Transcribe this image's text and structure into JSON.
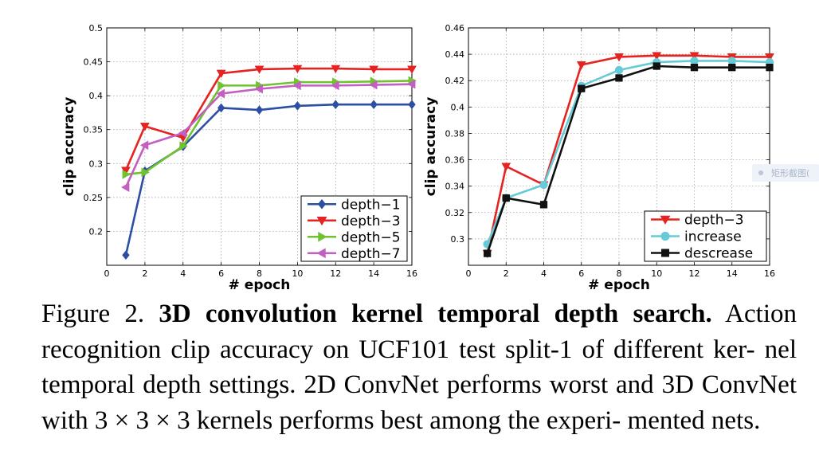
{
  "chart_data": [
    {
      "type": "line",
      "xlabel": "# epoch",
      "ylabel": "clip accuracy",
      "xlim": [
        0,
        16
      ],
      "ylim": [
        0.15,
        0.5
      ],
      "xticks": [
        0,
        2,
        4,
        6,
        8,
        10,
        12,
        14,
        16
      ],
      "yticks": [
        0.2,
        0.25,
        0.3,
        0.35,
        0.4,
        0.45,
        0.5
      ],
      "ytick_labels": [
        "0.2",
        "0.25",
        "0.3",
        "0.35",
        "0.4",
        "0.45",
        "0.5"
      ],
      "grid": true,
      "legend_position": "bottom-right",
      "x": [
        1,
        2,
        4,
        6,
        8,
        10,
        12,
        14,
        16
      ],
      "series": [
        {
          "name": "depth−1",
          "color": "#2c4ea3",
          "marker": "diamond",
          "values": [
            0.165,
            0.289,
            0.325,
            0.382,
            0.379,
            0.385,
            0.387,
            0.387,
            0.387
          ]
        },
        {
          "name": "depth−3",
          "color": "#e52321",
          "marker": "triangle-down",
          "values": [
            0.29,
            0.355,
            0.338,
            0.433,
            0.439,
            0.44,
            0.44,
            0.439,
            0.439
          ]
        },
        {
          "name": "depth−5",
          "color": "#6fc230",
          "marker": "triangle-right",
          "values": [
            0.284,
            0.287,
            0.326,
            0.415,
            0.415,
            0.42,
            0.42,
            0.421,
            0.422
          ]
        },
        {
          "name": "depth−7",
          "color": "#c25fc0",
          "marker": "triangle-left",
          "values": [
            0.265,
            0.327,
            0.345,
            0.403,
            0.41,
            0.415,
            0.415,
            0.416,
            0.417
          ]
        }
      ]
    },
    {
      "type": "line",
      "xlabel": "# epoch",
      "ylabel": "clip accuracy",
      "xlim": [
        0,
        16
      ],
      "ylim": [
        0.28,
        0.46
      ],
      "xticks": [
        0,
        2,
        4,
        6,
        8,
        10,
        12,
        14,
        16
      ],
      "yticks": [
        0.3,
        0.32,
        0.34,
        0.36,
        0.38,
        0.4,
        0.42,
        0.44,
        0.46
      ],
      "ytick_labels": [
        "0.3",
        "0.32",
        "0.34",
        "0.36",
        "0.38",
        "0.4",
        "0.42",
        "0.44",
        "0.46"
      ],
      "grid": true,
      "legend_position": "bottom-right",
      "x": [
        1,
        2,
        4,
        6,
        8,
        10,
        12,
        14,
        16
      ],
      "series": [
        {
          "name": "depth−3",
          "color": "#e52321",
          "marker": "triangle-down",
          "values": [
            0.289,
            0.355,
            0.341,
            0.432,
            0.438,
            0.439,
            0.439,
            0.438,
            0.438
          ]
        },
        {
          "name": "increase",
          "color": "#66cbd6",
          "marker": "circle",
          "values": [
            0.296,
            0.331,
            0.341,
            0.416,
            0.428,
            0.434,
            0.435,
            0.435,
            0.434
          ]
        },
        {
          "name": "descrease",
          "color": "#111111",
          "marker": "square",
          "values": [
            0.289,
            0.331,
            0.326,
            0.414,
            0.422,
            0.431,
            0.43,
            0.43,
            0.43
          ]
        }
      ]
    }
  ],
  "caption": {
    "label": "Figure 2.",
    "title": "3D convolution kernel temporal depth search.",
    "body": "Action recognition clip accuracy on UCF101 test split-1 of different ker- nel temporal depth settings. 2D ConvNet performs worst and 3D ConvNet with 3 × 3 × 3 kernels performs best among the experi- mented nets."
  },
  "watermark": {
    "text": "矩形截图("
  }
}
